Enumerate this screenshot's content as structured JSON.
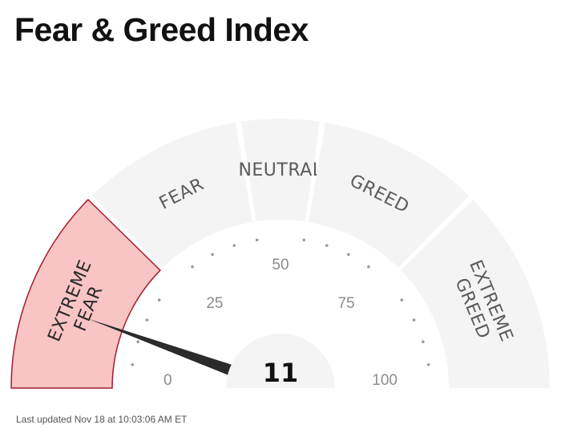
{
  "header": {
    "title": "Fear & Greed Index"
  },
  "gauge": {
    "value": 11,
    "value_text": "11",
    "min": 0,
    "max": 100,
    "active_zone": "extreme-fear",
    "zones": [
      {
        "id": "extreme-fear",
        "lines": [
          "EXTREME",
          "FEAR"
        ],
        "from": 0,
        "to": 25
      },
      {
        "id": "fear",
        "lines": [
          "FEAR"
        ],
        "from": 25,
        "to": 45
      },
      {
        "id": "neutral",
        "lines": [
          "NEUTRAL"
        ],
        "from": 45,
        "to": 55
      },
      {
        "id": "greed",
        "lines": [
          "GREED"
        ],
        "from": 55,
        "to": 75
      },
      {
        "id": "extreme-greed",
        "lines": [
          "EXTREME",
          "GREED"
        ],
        "from": 75,
        "to": 100
      }
    ],
    "scale_labels": [
      {
        "value": 0,
        "text": "0"
      },
      {
        "value": 25,
        "text": "25"
      },
      {
        "value": 50,
        "text": "50"
      },
      {
        "value": 75,
        "text": "75"
      },
      {
        "value": 100,
        "text": "100"
      }
    ],
    "colors": {
      "active_fill": "#f9c4c4",
      "active_stroke": "#a31d2e",
      "inactive_fill": "#f4f4f4",
      "needle": "#2b2b2b",
      "hub": "#f4f4f4"
    }
  },
  "footer": {
    "last_updated": "Last updated Nov 18 at 10:03:06 AM ET"
  }
}
